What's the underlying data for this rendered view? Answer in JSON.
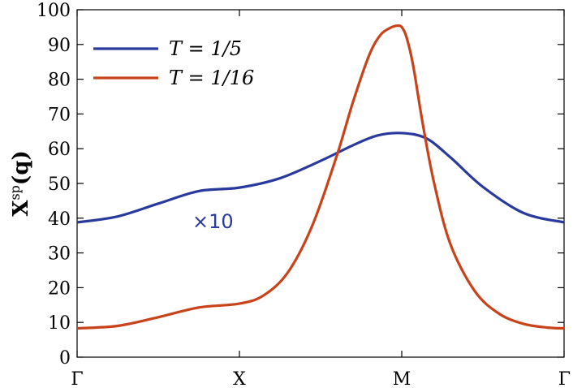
{
  "chart_data": {
    "type": "line",
    "ylabel": "X",
    "ylabel_sup": "sp",
    "ylabel_arg": "(q)",
    "ylim": [
      0,
      100
    ],
    "yticks": [
      "0",
      "10",
      "20",
      "30",
      "40",
      "50",
      "60",
      "70",
      "80",
      "90",
      "100"
    ],
    "x_ticks": [
      "Γ",
      "X",
      "M",
      "Γ"
    ],
    "xlim": [
      0,
      3
    ],
    "grid": false,
    "legend_placement": "top-left",
    "annotation": {
      "text": "×10",
      "x": 0.92,
      "y": 43,
      "color": "#2a3a9c"
    },
    "series": [
      {
        "name": "T = 1/5",
        "color": "#2a3a9c",
        "x": [
          0,
          0.25,
          0.5,
          0.75,
          1.0,
          1.25,
          1.5,
          1.7,
          1.85,
          2.0,
          2.15,
          2.3,
          2.5,
          2.75,
          3.0
        ],
        "y": [
          38.8,
          40.5,
          44.2,
          47.8,
          48.8,
          51.5,
          56.5,
          61.0,
          63.8,
          64.5,
          63.0,
          57.5,
          49.0,
          41.5,
          38.8
        ]
      },
      {
        "name": "T = 1/16",
        "color": "#c8431a",
        "x": [
          0,
          0.25,
          0.5,
          0.75,
          1.0,
          1.15,
          1.3,
          1.45,
          1.6,
          1.7,
          1.8,
          1.87,
          1.93,
          1.97,
          2.0,
          2.03,
          2.07,
          2.13,
          2.2,
          2.3,
          2.45,
          2.6,
          2.75,
          2.9,
          3.0
        ],
        "y": [
          8.3,
          9.0,
          11.5,
          14.3,
          15.4,
          17.8,
          24.5,
          38.0,
          58.0,
          73.5,
          87.0,
          92.8,
          94.8,
          95.4,
          95.0,
          92.0,
          84.0,
          67.0,
          50.0,
          32.5,
          19.0,
          12.5,
          9.6,
          8.5,
          8.3
        ]
      }
    ]
  }
}
